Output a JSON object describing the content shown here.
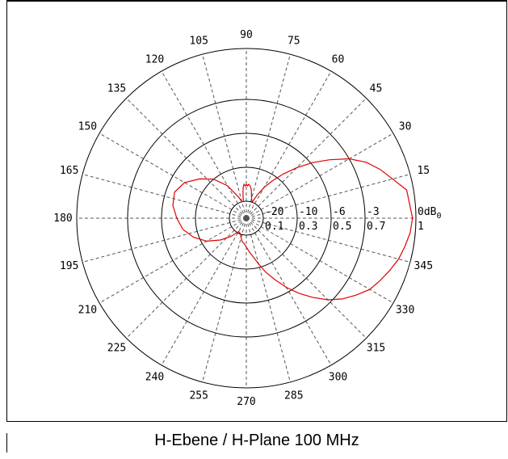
{
  "caption": "H-Ebene / H-Plane 100 MHz",
  "chart_data": {
    "type": "polar",
    "angle_labels": [
      "0",
      "15",
      "30",
      "45",
      "60",
      "75",
      "90",
      "105",
      "120",
      "135",
      "150",
      "165",
      "180",
      "195",
      "210",
      "225",
      "240",
      "255",
      "270",
      "285",
      "300",
      "315",
      "330",
      "345"
    ],
    "angle_labels_shown": [
      "15",
      "30",
      "45",
      "60",
      "75",
      "90",
      "105",
      "120",
      "135",
      "150",
      "165",
      "180",
      "195",
      "210",
      "225",
      "240",
      "255",
      "270",
      "285",
      "300",
      "315",
      "330",
      "345"
    ],
    "db_labels": [
      "-20",
      "-10",
      "-6",
      "-3",
      "0dB"
    ],
    "db_label_suffix": "0",
    "linear_labels": [
      "0.1",
      "0.3",
      "0.5",
      "0.7",
      "1"
    ],
    "ring_values_linear": [
      0.1,
      0.3,
      0.5,
      0.7,
      1.0
    ],
    "angle_step_deg": 15,
    "series": [
      {
        "color": "#e00000",
        "angles_deg": [
          0,
          10,
          20,
          25,
          30,
          35,
          40,
          45,
          50,
          55,
          60,
          65,
          70,
          75,
          80,
          83,
          86,
          88,
          90,
          92,
          94,
          96,
          98,
          100,
          105,
          110,
          120,
          130,
          140,
          150,
          160,
          170,
          180,
          190,
          200,
          210,
          220,
          230,
          240,
          250,
          255,
          260,
          265,
          270,
          275,
          280,
          285,
          290,
          295,
          300,
          305,
          310,
          315,
          320,
          325,
          330,
          335,
          340,
          345,
          350,
          355,
          360
        ],
        "values_linear": [
          0.98,
          0.96,
          0.84,
          0.78,
          0.7,
          0.6,
          0.51,
          0.42,
          0.34,
          0.27,
          0.21,
          0.15,
          0.1,
          0.12,
          0.17,
          0.19,
          0.2,
          0.19,
          0.2,
          0.19,
          0.2,
          0.18,
          0.14,
          0.1,
          0.1,
          0.13,
          0.22,
          0.3,
          0.36,
          0.42,
          0.45,
          0.44,
          0.41,
          0.38,
          0.33,
          0.27,
          0.2,
          0.14,
          0.09,
          0.1,
          0.12,
          0.14,
          0.15,
          0.17,
          0.2,
          0.23,
          0.28,
          0.34,
          0.4,
          0.47,
          0.54,
          0.61,
          0.68,
          0.74,
          0.79,
          0.84,
          0.87,
          0.9,
          0.93,
          0.95,
          0.97,
          0.98
        ]
      }
    ]
  },
  "colors": {
    "trace": "#e00000",
    "grid": "#000000"
  }
}
